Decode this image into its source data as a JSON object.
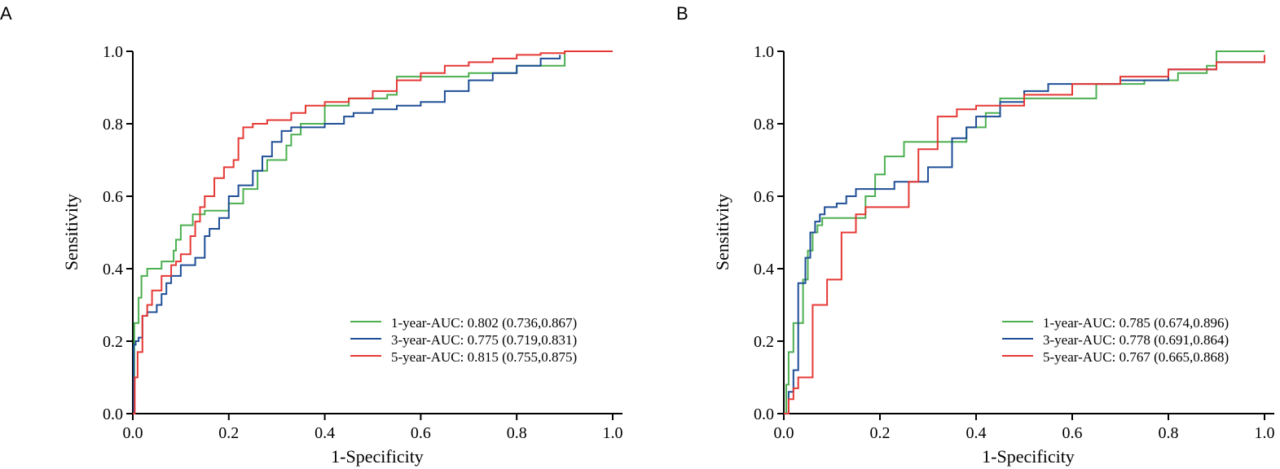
{
  "chart_data": [
    {
      "panel_label": "A",
      "type": "line",
      "xlabel": "1-Specificity",
      "ylabel": "Sensitivity",
      "xlim": [
        0,
        1
      ],
      "ylim": [
        0,
        1
      ],
      "ticks": [
        "0.0",
        "0.2",
        "0.4",
        "0.6",
        "0.8",
        "1.0"
      ],
      "legend_position": "bottom-right",
      "series": [
        {
          "name": "1-year-AUC: 0.802 (0.736,0.867)",
          "color": "#4caf50",
          "x": [
            0,
            0.003,
            0.006,
            0.012,
            0.018,
            0.03,
            0.06,
            0.085,
            0.09,
            0.1,
            0.12,
            0.125,
            0.15,
            0.2,
            0.23,
            0.26,
            0.28,
            0.3,
            0.32,
            0.33,
            0.35,
            0.4,
            0.45,
            0.53,
            0.55,
            0.6,
            0.63,
            0.7,
            0.8,
            0.9,
            1.0
          ],
          "y": [
            0,
            0.25,
            0.25,
            0.32,
            0.38,
            0.4,
            0.42,
            0.45,
            0.48,
            0.52,
            0.52,
            0.55,
            0.56,
            0.58,
            0.62,
            0.67,
            0.7,
            0.7,
            0.74,
            0.77,
            0.8,
            0.85,
            0.87,
            0.88,
            0.93,
            0.93,
            0.93,
            0.94,
            0.96,
            1.0,
            1.0
          ]
        },
        {
          "name": "3-year-AUC: 0.775 (0.719,0.831)",
          "color": "#1f4e96",
          "x": [
            0,
            0.002,
            0.006,
            0.012,
            0.02,
            0.03,
            0.05,
            0.06,
            0.07,
            0.08,
            0.1,
            0.13,
            0.15,
            0.16,
            0.18,
            0.2,
            0.22,
            0.25,
            0.27,
            0.29,
            0.31,
            0.33,
            0.36,
            0.4,
            0.44,
            0.46,
            0.5,
            0.52,
            0.55,
            0.6,
            0.65,
            0.7,
            0.75,
            0.8,
            0.85,
            0.89
          ],
          "y": [
            0,
            0.19,
            0.2,
            0.21,
            0.27,
            0.28,
            0.3,
            0.33,
            0.36,
            0.38,
            0.41,
            0.43,
            0.49,
            0.51,
            0.54,
            0.6,
            0.63,
            0.67,
            0.71,
            0.75,
            0.78,
            0.79,
            0.79,
            0.8,
            0.82,
            0.83,
            0.84,
            0.84,
            0.85,
            0.86,
            0.89,
            0.92,
            0.94,
            0.96,
            0.98,
            0.99
          ]
        },
        {
          "name": "5-year-AUC: 0.815 (0.755,0.875)",
          "color": "#e53935",
          "x": [
            0,
            0.004,
            0.01,
            0.02,
            0.03,
            0.04,
            0.06,
            0.08,
            0.09,
            0.1,
            0.12,
            0.13,
            0.14,
            0.15,
            0.17,
            0.19,
            0.21,
            0.22,
            0.23,
            0.25,
            0.28,
            0.33,
            0.36,
            0.4,
            0.45,
            0.5,
            0.55,
            0.6,
            0.65,
            0.7,
            0.75,
            0.8,
            0.85,
            0.9,
            1.0
          ],
          "y": [
            0,
            0.1,
            0.17,
            0.27,
            0.3,
            0.34,
            0.38,
            0.41,
            0.42,
            0.44,
            0.49,
            0.53,
            0.57,
            0.6,
            0.65,
            0.68,
            0.7,
            0.76,
            0.79,
            0.8,
            0.81,
            0.83,
            0.85,
            0.86,
            0.87,
            0.89,
            0.92,
            0.94,
            0.96,
            0.97,
            0.98,
            0.99,
            0.995,
            1.0,
            1.0
          ]
        }
      ]
    },
    {
      "panel_label": "B",
      "type": "line",
      "xlabel": "1-Specificity",
      "ylabel": "Sensitivity",
      "xlim": [
        0,
        1
      ],
      "ylim": [
        0,
        1
      ],
      "ticks": [
        "0.0",
        "0.2",
        "0.4",
        "0.6",
        "0.8",
        "1.0"
      ],
      "legend_position": "bottom-right",
      "series": [
        {
          "name": "1-year-AUC: 0.785 (0.674,0.896)",
          "color": "#4caf50",
          "x": [
            0,
            0.005,
            0.01,
            0.02,
            0.035,
            0.04,
            0.05,
            0.06,
            0.07,
            0.08,
            0.1,
            0.16,
            0.17,
            0.19,
            0.21,
            0.25,
            0.3,
            0.35,
            0.38,
            0.42,
            0.45,
            0.48,
            0.55,
            0.65,
            0.75,
            0.82,
            0.88,
            0.9,
            1.0
          ],
          "y": [
            0,
            0.08,
            0.17,
            0.25,
            0.25,
            0.37,
            0.45,
            0.5,
            0.52,
            0.54,
            0.54,
            0.54,
            0.6,
            0.66,
            0.71,
            0.75,
            0.75,
            0.75,
            0.79,
            0.83,
            0.87,
            0.87,
            0.87,
            0.91,
            0.92,
            0.94,
            0.96,
            1.0,
            1.0
          ]
        },
        {
          "name": "3-year-AUC: 0.778 (0.691,0.864)",
          "color": "#1f4e96",
          "x": [
            0,
            0.01,
            0.02,
            0.03,
            0.045,
            0.055,
            0.065,
            0.075,
            0.085,
            0.11,
            0.13,
            0.15,
            0.17,
            0.2,
            0.23,
            0.25,
            0.28,
            0.3,
            0.35,
            0.38,
            0.4,
            0.45,
            0.5,
            0.55,
            0.6,
            0.7,
            0.8,
            0.9,
            1.0
          ],
          "y": [
            0,
            0.06,
            0.12,
            0.36,
            0.43,
            0.5,
            0.53,
            0.55,
            0.57,
            0.58,
            0.6,
            0.62,
            0.62,
            0.62,
            0.64,
            0.64,
            0.64,
            0.68,
            0.76,
            0.79,
            0.82,
            0.86,
            0.89,
            0.91,
            0.91,
            0.92,
            0.95,
            0.97,
            0.98
          ]
        },
        {
          "name": "5-year-AUC: 0.767 (0.665,0.868)",
          "color": "#e53935",
          "x": [
            0,
            0.01,
            0.02,
            0.03,
            0.05,
            0.06,
            0.065,
            0.09,
            0.1,
            0.12,
            0.14,
            0.15,
            0.17,
            0.22,
            0.26,
            0.28,
            0.32,
            0.33,
            0.36,
            0.4,
            0.5,
            0.6,
            0.7,
            0.8,
            0.9,
            1.0
          ],
          "y": [
            0,
            0.04,
            0.07,
            0.1,
            0.1,
            0.3,
            0.3,
            0.37,
            0.37,
            0.5,
            0.5,
            0.55,
            0.57,
            0.57,
            0.64,
            0.73,
            0.82,
            0.82,
            0.84,
            0.85,
            0.88,
            0.91,
            0.93,
            0.95,
            0.97,
            0.99
          ]
        }
      ]
    }
  ]
}
